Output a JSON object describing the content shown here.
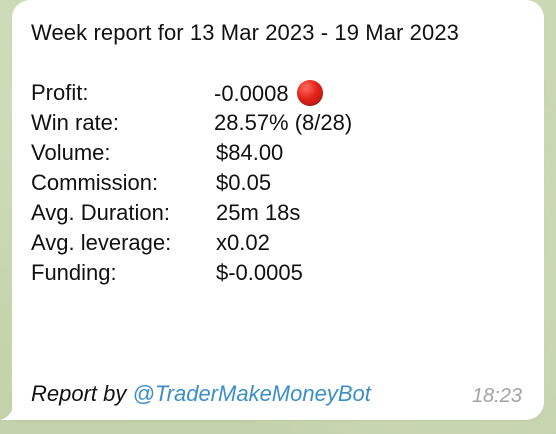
{
  "message": {
    "title": "Week report for 13 Mar 2023 - 19 Mar 2023",
    "rows": [
      {
        "label": "Profit:",
        "value": "-0.0008",
        "status_icon": "red-circle-icon"
      },
      {
        "label": "Win rate:",
        "value": "28.57% (8/28)"
      },
      {
        "label": "Volume:",
        "value": "$84.00"
      },
      {
        "label": "Commission:",
        "value": "$0.05"
      },
      {
        "label": "Avg. Duration:",
        "value": "25m 18s"
      },
      {
        "label": "Avg. leverage:",
        "value": "x0.02"
      },
      {
        "label": "Funding:",
        "value": "$-0.0005"
      }
    ],
    "footer_prefix": "Report by",
    "footer_link": "@TraderMakeMoneyBot",
    "time": "18:23"
  },
  "colors": {
    "bubble": "#ffffff",
    "chat_background": "#c9d6b3",
    "link": "#3c8ec9",
    "status_red": "#e2231a",
    "timestamp": "#a3a3a3"
  }
}
